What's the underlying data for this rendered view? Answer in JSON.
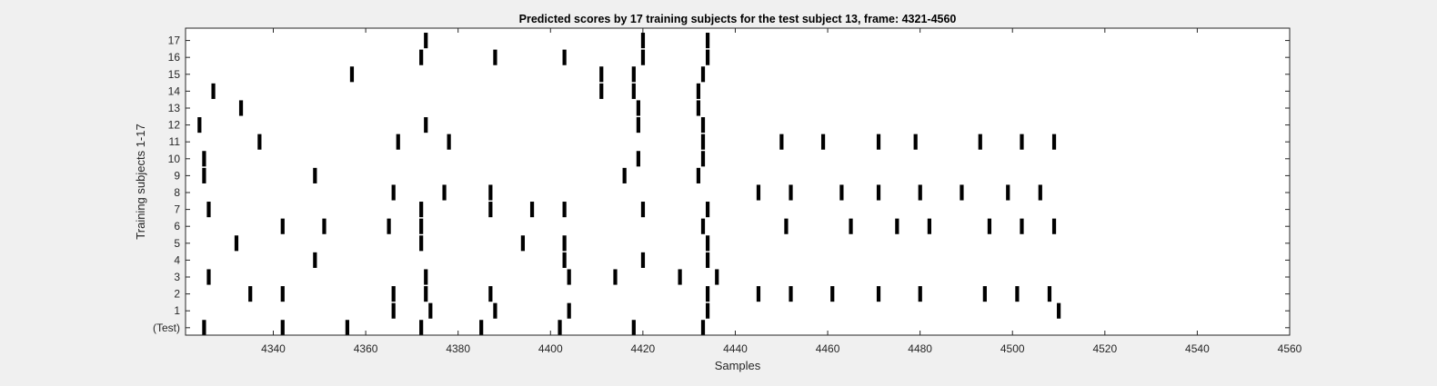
{
  "chart_data": {
    "type": "raster",
    "title": "Predicted scores by 17 training subjects for the test subject 13, frame: 4321-4560",
    "xlabel": "Samples",
    "ylabel": "Training subjects 1-17",
    "xlim": [
      4321,
      4560
    ],
    "x_ticks": [
      4340,
      4360,
      4380,
      4400,
      4420,
      4440,
      4460,
      4480,
      4500,
      4520,
      4540,
      4560
    ],
    "y_ticks": [
      "(Test)",
      "1",
      "2",
      "3",
      "4",
      "5",
      "6",
      "7",
      "8",
      "9",
      "10",
      "11",
      "12",
      "13",
      "14",
      "15",
      "16",
      "17"
    ],
    "grid": false,
    "background_color": "#ffffff",
    "figure_color": "#f0f0f0",
    "mark_color": "#000000",
    "rows": [
      {
        "label": "(Test)",
        "x": [
          4325,
          4342,
          4356,
          4372,
          4385,
          4402,
          4418,
          4433
        ]
      },
      {
        "label": "1",
        "x": [
          4366,
          4374,
          4388,
          4404,
          4434,
          4510
        ]
      },
      {
        "label": "2",
        "x": [
          4335,
          4342,
          4366,
          4373,
          4387,
          4434,
          4445,
          4452,
          4461,
          4471,
          4480,
          4494,
          4501,
          4508
        ]
      },
      {
        "label": "3",
        "x": [
          4326,
          4373,
          4404,
          4414,
          4428,
          4436
        ]
      },
      {
        "label": "4",
        "x": [
          4349,
          4403,
          4420,
          4434
        ]
      },
      {
        "label": "5",
        "x": [
          4332,
          4372,
          4394,
          4403,
          4434
        ]
      },
      {
        "label": "6",
        "x": [
          4342,
          4351,
          4365,
          4372,
          4433,
          4451,
          4465,
          4475,
          4482,
          4495,
          4502,
          4509
        ]
      },
      {
        "label": "7",
        "x": [
          4326,
          4372,
          4387,
          4396,
          4403,
          4420,
          4434
        ]
      },
      {
        "label": "8",
        "x": [
          4366,
          4377,
          4387,
          4445,
          4452,
          4463,
          4471,
          4480,
          4489,
          4499,
          4506
        ]
      },
      {
        "label": "9",
        "x": [
          4325,
          4349,
          4416,
          4432
        ]
      },
      {
        "label": "10",
        "x": [
          4325,
          4419,
          4433
        ]
      },
      {
        "label": "11",
        "x": [
          4337,
          4367,
          4378,
          4433,
          4450,
          4459,
          4471,
          4479,
          4493,
          4502,
          4509
        ]
      },
      {
        "label": "12",
        "x": [
          4324,
          4373,
          4419,
          4433
        ]
      },
      {
        "label": "13",
        "x": [
          4333,
          4419,
          4432
        ]
      },
      {
        "label": "14",
        "x": [
          4327,
          4411,
          4418,
          4432
        ]
      },
      {
        "label": "15",
        "x": [
          4357,
          4411,
          4418,
          4433
        ]
      },
      {
        "label": "16",
        "x": [
          4372,
          4388,
          4403,
          4420,
          4434
        ]
      },
      {
        "label": "17",
        "x": [
          4373,
          4420,
          4434
        ]
      }
    ]
  }
}
